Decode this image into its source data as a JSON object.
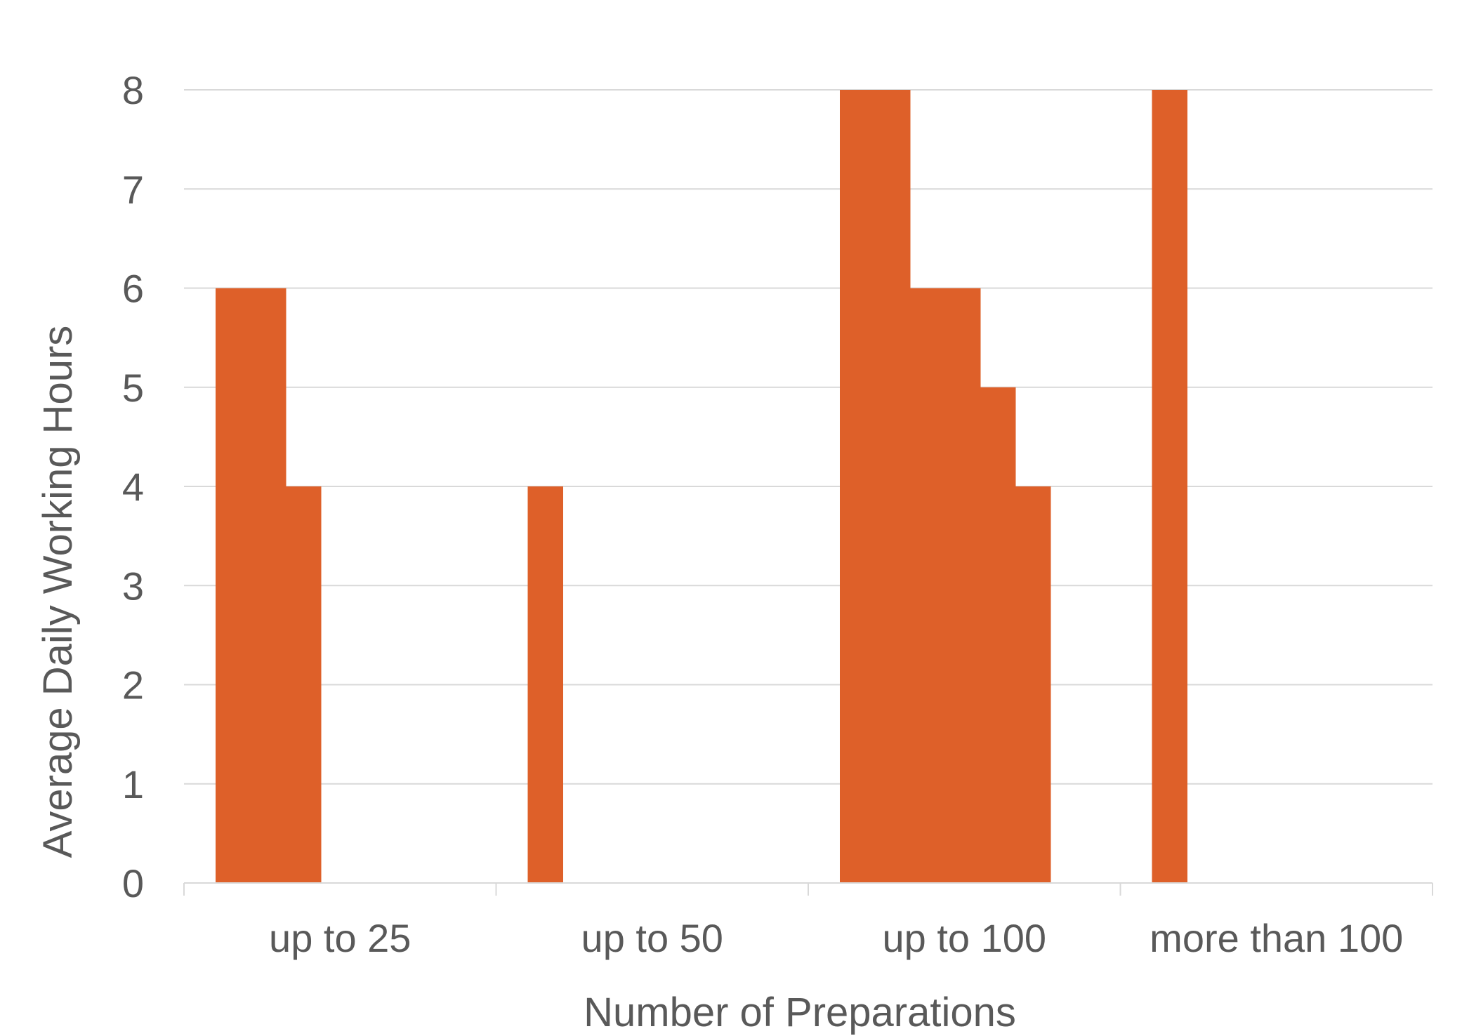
{
  "chart_data": {
    "type": "bar",
    "title": "",
    "xlabel": "Number of Preparations",
    "ylabel": "Average Daily Working Hours",
    "ylim": [
      0,
      8
    ],
    "yticks": [
      "0",
      "1",
      "2",
      "3",
      "4",
      "5",
      "6",
      "7",
      "8"
    ],
    "categories": [
      "up to 25",
      "up to 50",
      "up to 100",
      "more than 100"
    ],
    "grid": true,
    "legend": "none",
    "bar_color": "#DE6029",
    "grid_color": "#D9D9D9",
    "text_color": "#595959",
    "bars": [
      {
        "category": "up to 25",
        "value": 6
      },
      {
        "category": "up to 25",
        "value": 6
      },
      {
        "category": "up to 25",
        "value": 4
      },
      {
        "category": "up to 50",
        "value": 4
      },
      {
        "category": "up to 100",
        "value": 8
      },
      {
        "category": "up to 100",
        "value": 8
      },
      {
        "category": "up to 100",
        "value": 6
      },
      {
        "category": "up to 100",
        "value": 6
      },
      {
        "category": "up to 100",
        "value": 5
      },
      {
        "category": "up to 100",
        "value": 4
      },
      {
        "category": "more than 100",
        "value": 8
      }
    ]
  }
}
